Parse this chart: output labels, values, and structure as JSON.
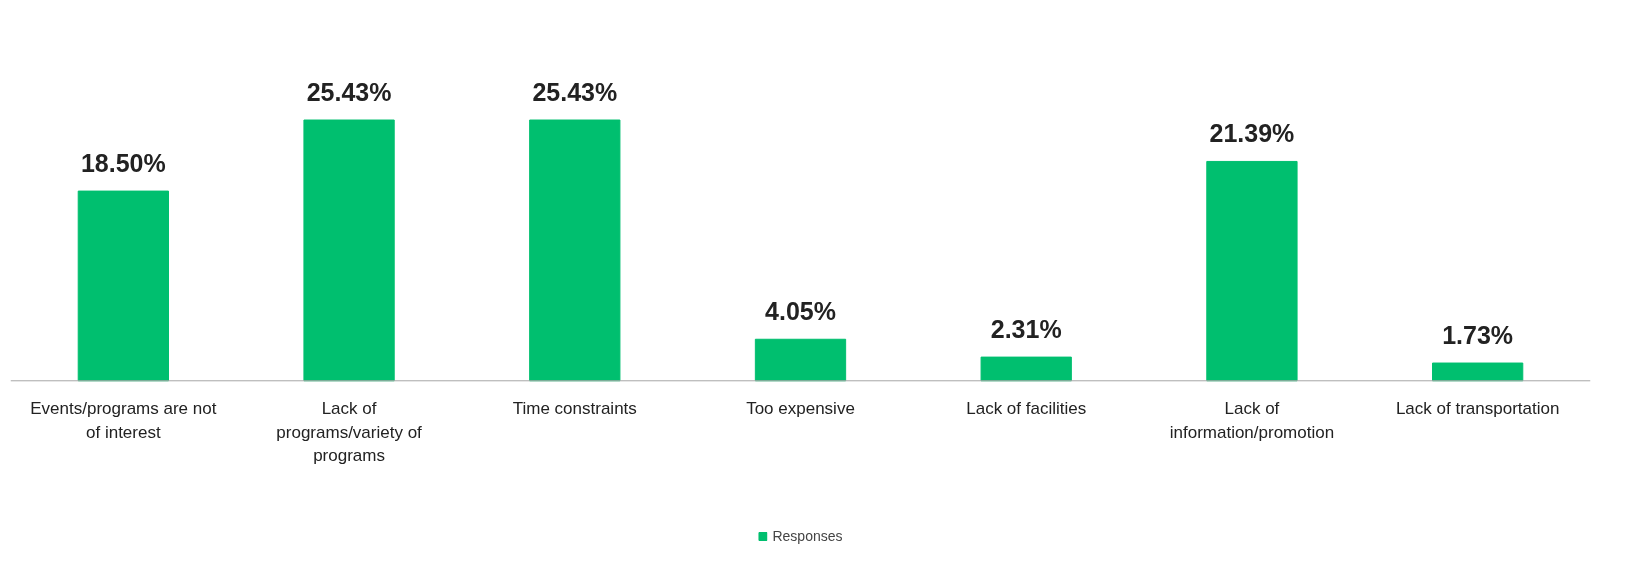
{
  "chart_data": {
    "type": "bar",
    "categories": [
      "Events/programs are not of interest",
      "Lack of programs/variety of programs",
      "Time constraints",
      "Too expensive",
      "Lack of facilities",
      "Lack of information/promotion",
      "Lack of transportation"
    ],
    "series": [
      {
        "name": "Responses",
        "color": "#00bf6f",
        "values": [
          18.5,
          25.43,
          25.43,
          4.05,
          2.31,
          21.39,
          1.73
        ],
        "value_labels": [
          "18.50%",
          "25.43%",
          "25.43%",
          "4.05%",
          "2.31%",
          "21.39%",
          "1.73%"
        ]
      }
    ],
    "legend": "bottom"
  }
}
